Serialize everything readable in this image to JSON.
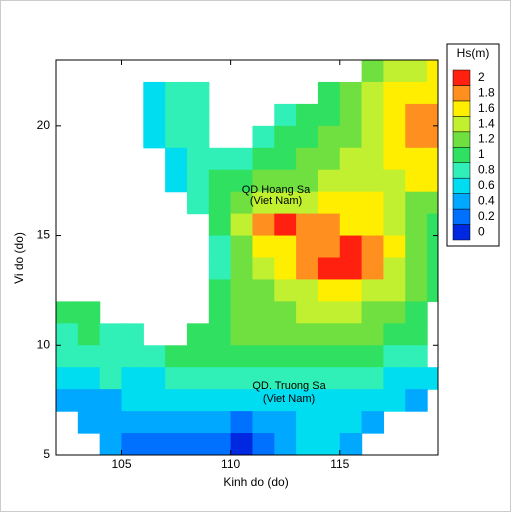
{
  "chart_data": {
    "type": "contour",
    "xlabel": "Kinh do (do)",
    "ylabel": "Vi do (do)",
    "xlim": [
      102,
      119.5
    ],
    "ylim": [
      5,
      23
    ],
    "xticks": [
      105,
      110,
      115
    ],
    "yticks": [
      5,
      10,
      15,
      20
    ],
    "x": [
      102.5,
      103.5,
      104.5,
      105.5,
      106.5,
      107.5,
      108.5,
      109.5,
      110.5,
      111.5,
      112.5,
      113.5,
      114.5,
      115.5,
      116.5,
      117.5,
      118.5,
      119.5
    ],
    "y": [
      22.5,
      21.5,
      20.5,
      19.5,
      18.5,
      17.5,
      16.5,
      15.5,
      14.5,
      13.5,
      12.5,
      11.5,
      10.5,
      9.5,
      8.5,
      7.5,
      6.5,
      5.5
    ],
    "z": [
      [
        null,
        null,
        null,
        null,
        null,
        null,
        null,
        null,
        null,
        null,
        null,
        null,
        null,
        null,
        1.2,
        1.4,
        1.5,
        1.6
      ],
      [
        null,
        null,
        null,
        null,
        0.6,
        0.8,
        0.8,
        null,
        null,
        null,
        null,
        null,
        1.0,
        1.2,
        1.4,
        1.6,
        1.7,
        1.7
      ],
      [
        null,
        null,
        null,
        null,
        0.6,
        0.8,
        0.8,
        null,
        null,
        null,
        0.9,
        1.0,
        1.1,
        1.3,
        1.4,
        1.6,
        1.8,
        1.8
      ],
      [
        null,
        null,
        null,
        null,
        0.6,
        0.8,
        0.8,
        null,
        null,
        0.9,
        1.0,
        1.1,
        1.2,
        1.3,
        1.4,
        1.6,
        1.8,
        1.8
      ],
      [
        null,
        null,
        null,
        null,
        null,
        0.7,
        0.8,
        0.9,
        0.9,
        1.0,
        1.1,
        1.2,
        1.3,
        1.4,
        1.5,
        1.6,
        1.7,
        1.7
      ],
      [
        null,
        null,
        null,
        null,
        null,
        0.6,
        0.8,
        1.0,
        1.1,
        1.2,
        1.3,
        1.3,
        1.4,
        1.5,
        1.5,
        1.5,
        1.6,
        1.6
      ],
      [
        null,
        null,
        null,
        null,
        null,
        null,
        0.8,
        1.0,
        1.2,
        1.4,
        1.5,
        1.5,
        1.6,
        1.6,
        1.6,
        1.4,
        1.3,
        1.2
      ],
      [
        null,
        null,
        null,
        null,
        null,
        null,
        null,
        1.0,
        1.4,
        1.8,
        2.0,
        1.9,
        1.8,
        1.7,
        1.6,
        1.5,
        1.2,
        1.1
      ],
      [
        null,
        null,
        null,
        null,
        null,
        null,
        null,
        0.9,
        1.3,
        1.6,
        1.7,
        1.8,
        1.9,
        2.0,
        1.9,
        1.6,
        1.3,
        1.1
      ],
      [
        null,
        null,
        null,
        null,
        null,
        null,
        null,
        0.9,
        1.2,
        1.4,
        1.6,
        1.8,
        2.0,
        2.0,
        1.8,
        1.5,
        1.3,
        1.0
      ],
      [
        null,
        null,
        null,
        null,
        null,
        null,
        null,
        1.0,
        1.2,
        1.3,
        1.4,
        1.5,
        1.6,
        1.6,
        1.5,
        1.4,
        1.2,
        1.0
      ],
      [
        1.0,
        1.0,
        null,
        null,
        null,
        null,
        null,
        1.1,
        1.2,
        1.3,
        1.3,
        1.4,
        1.4,
        1.4,
        1.3,
        1.3,
        1.1,
        null
      ],
      [
        0.9,
        1.0,
        0.9,
        0.9,
        null,
        null,
        1.0,
        1.1,
        1.2,
        1.2,
        1.2,
        1.2,
        1.2,
        1.2,
        1.2,
        1.1,
        1.0,
        null
      ],
      [
        0.8,
        0.9,
        0.9,
        0.9,
        0.8,
        1.0,
        1.0,
        1.1,
        1.1,
        1.1,
        1.0,
        1.0,
        1.0,
        1.0,
        1.0,
        0.9,
        0.8,
        null
      ],
      [
        0.6,
        0.7,
        0.8,
        0.7,
        0.7,
        0.8,
        0.8,
        0.8,
        0.9,
        0.8,
        0.8,
        0.8,
        0.8,
        0.8,
        0.8,
        0.7,
        0.6,
        0.6
      ],
      [
        0.5,
        0.5,
        0.5,
        0.6,
        0.6,
        0.6,
        0.6,
        0.6,
        0.6,
        0.6,
        0.6,
        0.7,
        0.7,
        0.7,
        0.6,
        0.6,
        0.5,
        null
      ],
      [
        null,
        0.4,
        0.4,
        0.4,
        0.5,
        0.4,
        0.4,
        0.4,
        0.3,
        0.4,
        0.5,
        0.6,
        0.7,
        0.6,
        0.5,
        null,
        null,
        null
      ],
      [
        null,
        null,
        0.4,
        0.3,
        0.3,
        0.3,
        0.2,
        0.2,
        0.1,
        0.2,
        0.4,
        0.6,
        0.6,
        0.5,
        null,
        null,
        null,
        null
      ]
    ],
    "colorbar": {
      "title": "Hs(m)",
      "levels": [
        0,
        0.2,
        0.4,
        0.6,
        0.8,
        1,
        1.2,
        1.4,
        1.6,
        1.8,
        2
      ],
      "colors": [
        "#0028e0",
        "#0070ff",
        "#00a8ff",
        "#00dcf0",
        "#30f0b8",
        "#30e060",
        "#70e040",
        "#c0f030",
        "#ffee00",
        "#ff9020",
        "#ff2010"
      ]
    },
    "annotations": [
      "QD Hoang Sa",
      "(Viet Nam)",
      "QD. Truong Sa",
      "(Viet Nam)"
    ]
  }
}
